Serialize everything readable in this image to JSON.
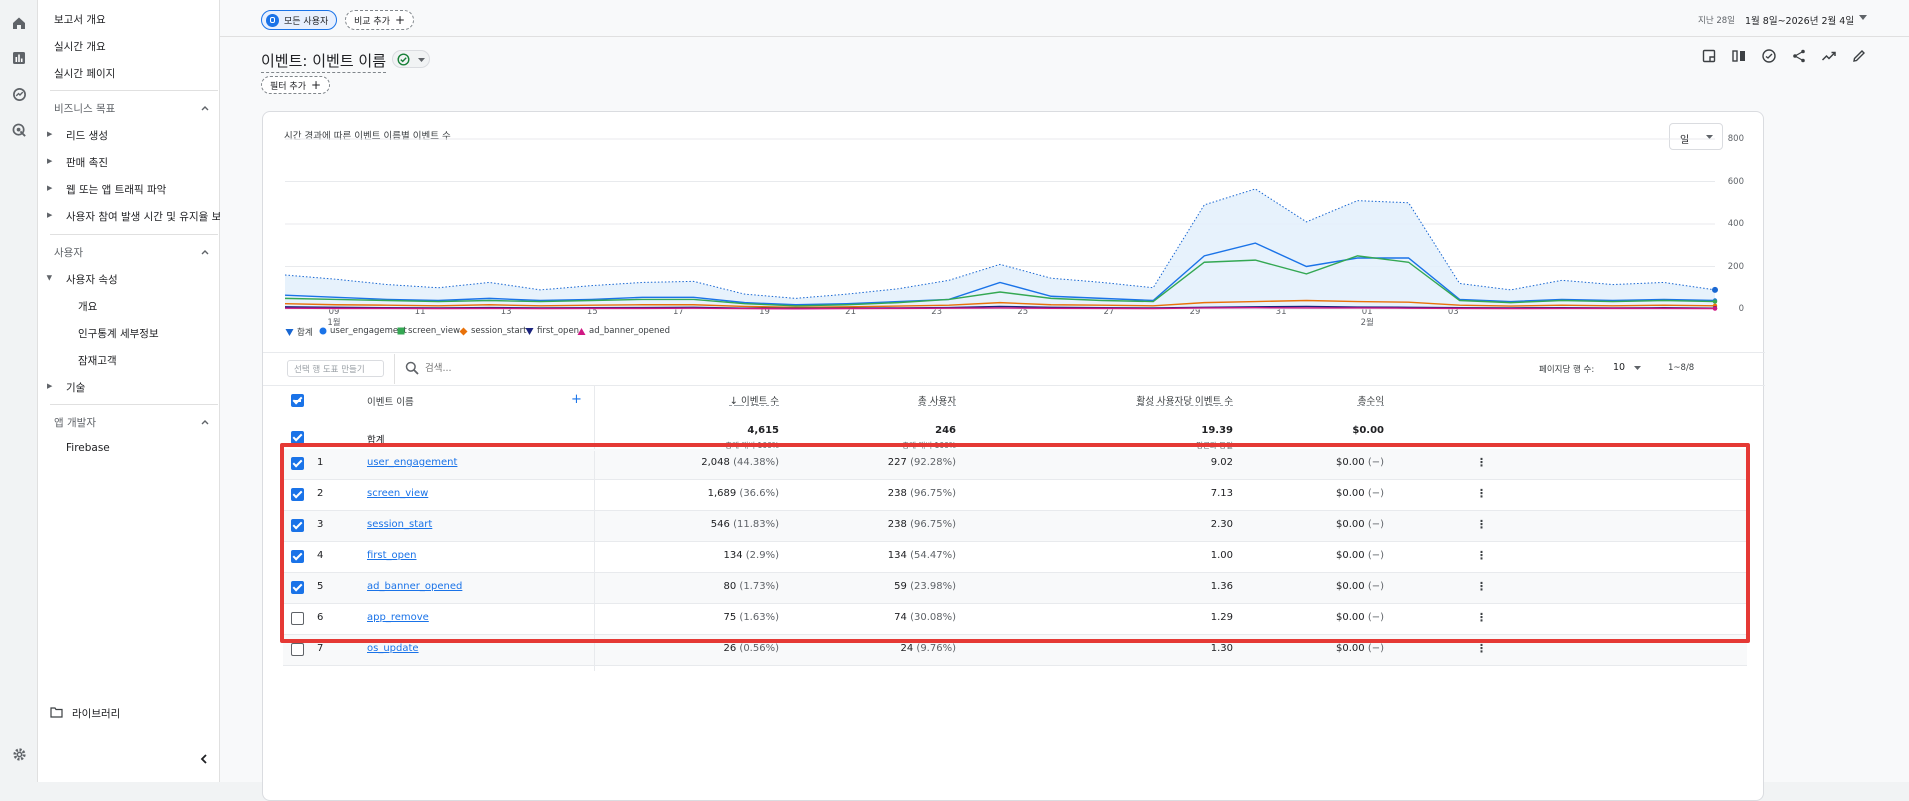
{
  "sidebar": {
    "items_top": [
      "보고서 개요",
      "실시간 개요",
      "실시간 페이지"
    ],
    "business_section": "비즈니스 목표",
    "business_items": [
      "리드 생성",
      "판매 촉진",
      "웹 또는 앱 트래픽 파악",
      "사용자 참여 발생 시간 및 유지율 보기"
    ],
    "user_section": "사용자",
    "user_attr": "사용자 속성",
    "user_attr_items": [
      "개요",
      "인구통계 세부정보",
      "잠재고객"
    ],
    "tech": "기술",
    "dev_section": "앱 개발자",
    "firebase": "Firebase",
    "library": "라이브러리"
  },
  "topbar": {
    "segment_chip": "모든 사용자",
    "compare_chip": "비교 추가",
    "date_prefix": "지난 28일",
    "date_range": "1월 8일~2026년 2월 4일"
  },
  "page": {
    "title": "이벤트: 이벤트 이름",
    "filter_chip": "필터 추가"
  },
  "chart_data": {
    "type": "line",
    "title": "시간 경과에 따른 이벤트 이름별 이벤트 수",
    "granularity": "일",
    "ylim": [
      0,
      800
    ],
    "yticks": [
      "800",
      "600",
      "400",
      "200",
      "0"
    ],
    "xticks": [
      {
        "label": "09",
        "sub": "1월"
      },
      {
        "label": "11",
        "sub": ""
      },
      {
        "label": "13",
        "sub": ""
      },
      {
        "label": "15",
        "sub": ""
      },
      {
        "label": "17",
        "sub": ""
      },
      {
        "label": "19",
        "sub": ""
      },
      {
        "label": "21",
        "sub": ""
      },
      {
        "label": "23",
        "sub": ""
      },
      {
        "label": "25",
        "sub": ""
      },
      {
        "label": "27",
        "sub": ""
      },
      {
        "label": "29",
        "sub": ""
      },
      {
        "label": "31",
        "sub": ""
      },
      {
        "label": "01",
        "sub": "2월"
      },
      {
        "label": "03",
        "sub": ""
      }
    ],
    "series": [
      {
        "name": "합계",
        "color": "#1967d2",
        "values": [
          160,
          140,
          115,
          100,
          125,
          90,
          110,
          125,
          130,
          70,
          50,
          70,
          95,
          135,
          210,
          145,
          125,
          100,
          490,
          565,
          410,
          510,
          500,
          120,
          90,
          135,
          115,
          125,
          90
        ]
      },
      {
        "name": "user_engagement",
        "color": "#1a73e8",
        "values": [
          65,
          55,
          45,
          40,
          50,
          40,
          45,
          55,
          55,
          30,
          20,
          25,
          35,
          45,
          125,
          60,
          50,
          40,
          250,
          310,
          200,
          240,
          240,
          45,
          35,
          45,
          40,
          45,
          40
        ]
      },
      {
        "name": "screen_view",
        "color": "#34a853",
        "values": [
          50,
          45,
          40,
          35,
          40,
          35,
          40,
          45,
          45,
          25,
          15,
          20,
          30,
          45,
          80,
          50,
          40,
          35,
          220,
          230,
          165,
          250,
          220,
          40,
          30,
          40,
          35,
          40,
          35
        ]
      },
      {
        "name": "session_start",
        "color": "#e8710a",
        "values": [
          25,
          20,
          18,
          15,
          20,
          15,
          18,
          20,
          20,
          12,
          8,
          10,
          14,
          18,
          30,
          20,
          18,
          15,
          30,
          35,
          40,
          35,
          32,
          18,
          14,
          18,
          15,
          18,
          15
        ]
      },
      {
        "name": "first_open",
        "color": "#1a237e",
        "values": [
          10,
          8,
          6,
          5,
          7,
          5,
          6,
          7,
          8,
          4,
          3,
          4,
          5,
          7,
          12,
          8,
          6,
          5,
          8,
          10,
          12,
          9,
          8,
          6,
          5,
          6,
          5,
          6,
          4
        ]
      },
      {
        "name": "ad_banner_opened",
        "color": "#d01884",
        "values": [
          4,
          3,
          3,
          2,
          3,
          2,
          3,
          3,
          4,
          2,
          1,
          2,
          3,
          4,
          5,
          3,
          3,
          2,
          5,
          6,
          5,
          5,
          4,
          3,
          2,
          3,
          3,
          3,
          2
        ]
      }
    ]
  },
  "table": {
    "row_builder_placeholder": "선택 행 도표 만들기",
    "search_placeholder": "검색...",
    "rows_per_page_label": "페이지당 행 수:",
    "rows_per_page": "10",
    "page_range": "1~8/8",
    "headers": {
      "name": "이벤트 이름",
      "events": "이벤트 수",
      "users": "총 사용자",
      "per_user": "활성 사용자당 이벤트 수",
      "revenue": "총수익"
    },
    "totals": {
      "label": "합계",
      "events": "4,615",
      "events_sub": "총계 대비 100%",
      "users": "246",
      "users_sub": "총계 대비 100%",
      "per_user": "19.39",
      "per_user_sub": "평균과 동일",
      "revenue": "$0.00"
    },
    "rows": [
      {
        "rank": "1",
        "name": "user_engagement",
        "events": "2,048",
        "events_pct": "(44.38%)",
        "users": "227",
        "users_pct": "(92.28%)",
        "per_user": "9.02",
        "revenue": "$0.00",
        "rev_pct": "(−)",
        "checked": true
      },
      {
        "rank": "2",
        "name": "screen_view",
        "events": "1,689",
        "events_pct": "(36.6%)",
        "users": "238",
        "users_pct": "(96.75%)",
        "per_user": "7.13",
        "revenue": "$0.00",
        "rev_pct": "(−)",
        "checked": true
      },
      {
        "rank": "3",
        "name": "session_start",
        "events": "546",
        "events_pct": "(11.83%)",
        "users": "238",
        "users_pct": "(96.75%)",
        "per_user": "2.30",
        "revenue": "$0.00",
        "rev_pct": "(−)",
        "checked": true
      },
      {
        "rank": "4",
        "name": "first_open",
        "events": "134",
        "events_pct": "(2.9%)",
        "users": "134",
        "users_pct": "(54.47%)",
        "per_user": "1.00",
        "revenue": "$0.00",
        "rev_pct": "(−)",
        "checked": true
      },
      {
        "rank": "5",
        "name": "ad_banner_opened",
        "events": "80",
        "events_pct": "(1.73%)",
        "users": "59",
        "users_pct": "(23.98%)",
        "per_user": "1.36",
        "revenue": "$0.00",
        "rev_pct": "(−)",
        "checked": true
      },
      {
        "rank": "6",
        "name": "app_remove",
        "events": "75",
        "events_pct": "(1.63%)",
        "users": "74",
        "users_pct": "(30.08%)",
        "per_user": "1.29",
        "revenue": "$0.00",
        "rev_pct": "(−)",
        "checked": false
      },
      {
        "rank": "7",
        "name": "os_update",
        "events": "26",
        "events_pct": "(0.56%)",
        "users": "24",
        "users_pct": "(9.76%)",
        "per_user": "1.30",
        "revenue": "$0.00",
        "rev_pct": "(−)",
        "checked": false
      }
    ]
  },
  "colors": {
    "accent": "#1a73e8",
    "highlight": "#e53935"
  }
}
